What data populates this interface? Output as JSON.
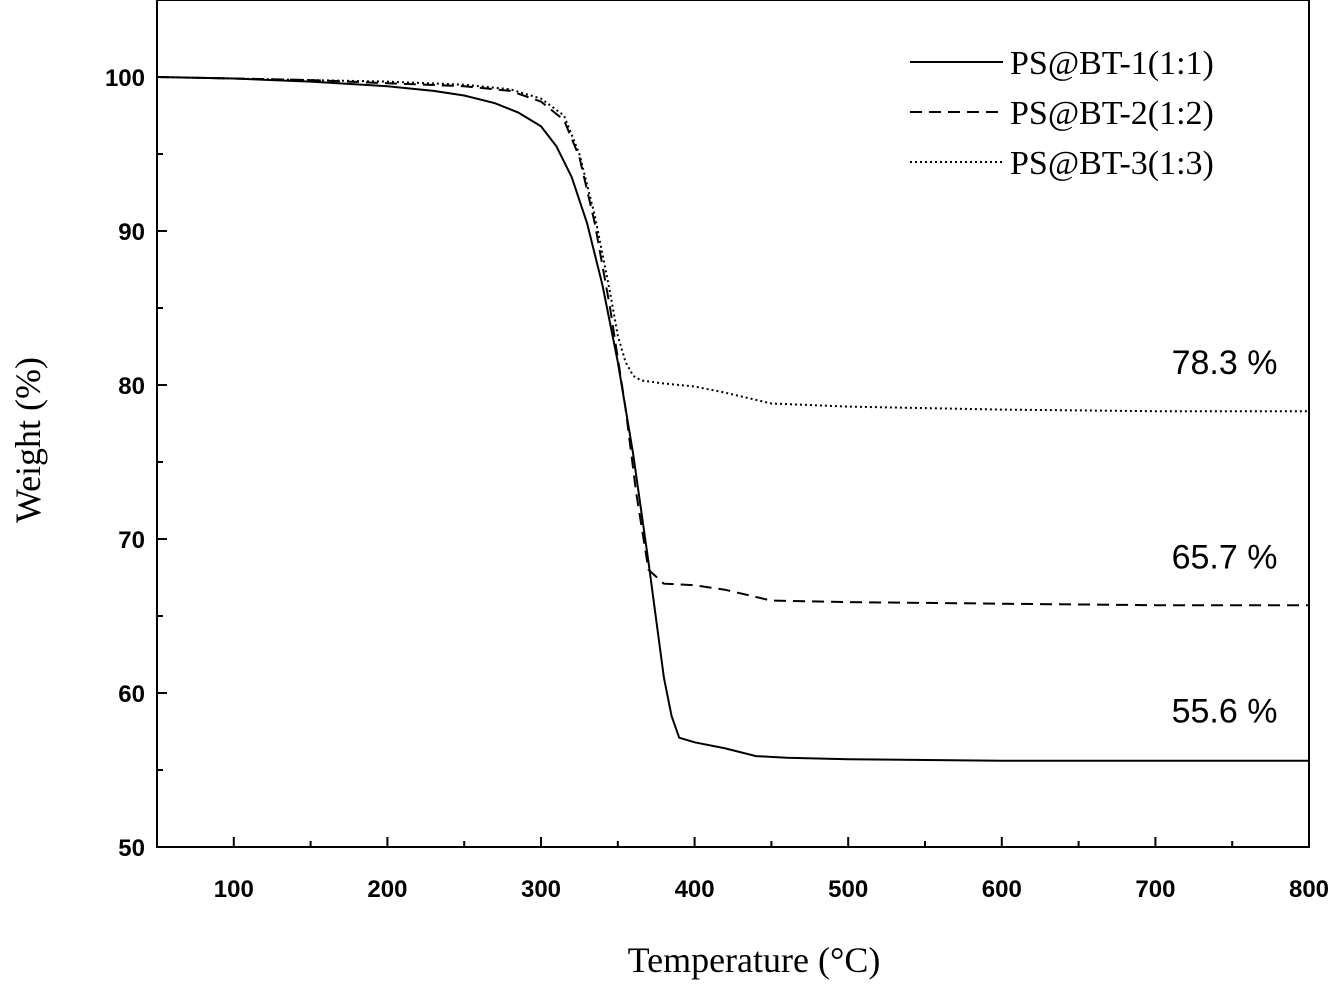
{
  "chart_data": {
    "type": "line",
    "xlabel": "Temperature (°C)",
    "ylabel": "Weight (%)",
    "xlim": [
      50,
      800
    ],
    "ylim": [
      50,
      105
    ],
    "x_ticks": [
      100,
      200,
      300,
      400,
      500,
      600,
      700,
      800
    ],
    "y_ticks": [
      50,
      60,
      70,
      80,
      90,
      100
    ],
    "legend_position": "top-right",
    "series": [
      {
        "name": "PS@BT-1(1:1)",
        "style": "solid",
        "x": [
          50,
          100,
          150,
          200,
          230,
          250,
          270,
          285,
          300,
          310,
          320,
          330,
          340,
          350,
          360,
          370,
          380,
          385,
          390,
          400,
          420,
          440,
          460,
          500,
          600,
          700,
          800
        ],
        "y": [
          100,
          99.9,
          99.7,
          99.4,
          99.1,
          98.8,
          98.3,
          97.7,
          96.8,
          95.5,
          93.5,
          90.5,
          86.5,
          81.5,
          75.5,
          68.5,
          61,
          58.5,
          57.1,
          56.8,
          56.4,
          55.9,
          55.8,
          55.7,
          55.6,
          55.6,
          55.6
        ]
      },
      {
        "name": "PS@BT-2(1:2)",
        "style": "dashed",
        "x": [
          50,
          100,
          150,
          200,
          250,
          280,
          300,
          315,
          325,
          335,
          345,
          355,
          362,
          370,
          380,
          400,
          420,
          450,
          500,
          600,
          700,
          800
        ],
        "y": [
          100,
          99.9,
          99.8,
          99.6,
          99.4,
          99.1,
          98.4,
          97.2,
          94.8,
          90.5,
          85,
          78.5,
          73,
          68,
          67.1,
          67,
          66.7,
          66,
          65.9,
          65.8,
          65.7,
          65.7
        ]
      },
      {
        "name": "PS@BT-3(1:3)",
        "style": "dotted",
        "x": [
          50,
          100,
          150,
          200,
          250,
          280,
          300,
          315,
          325,
          335,
          345,
          350,
          355,
          360,
          365,
          380,
          400,
          420,
          450,
          500,
          600,
          700,
          800
        ],
        "y": [
          100,
          99.9,
          99.8,
          99.7,
          99.5,
          99.2,
          98.6,
          97.5,
          95,
          91,
          86,
          83.2,
          81.5,
          80.6,
          80.3,
          80.1,
          79.9,
          79.5,
          78.8,
          78.6,
          78.4,
          78.3,
          78.3
        ]
      }
    ],
    "annotations": [
      {
        "text": "78.3 %",
        "x": 745,
        "y": 80.7
      },
      {
        "text": "65.7 %",
        "x": 745,
        "y": 68.1
      },
      {
        "text": "55.6 %",
        "x": 745,
        "y": 58.1
      }
    ]
  }
}
